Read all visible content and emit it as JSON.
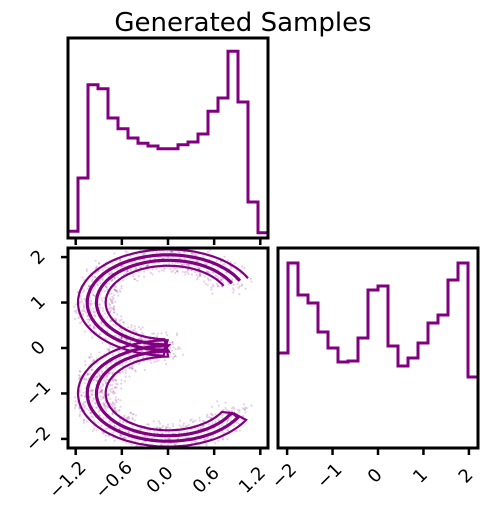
{
  "figure": {
    "title": "Generated Samples",
    "color": "#800080"
  },
  "chart_data": [
    {
      "type": "histogram",
      "panel": "top-left",
      "description_axis": "x",
      "xlim": [
        -1.3,
        1.3
      ],
      "bin_edges": [
        -1.3,
        -1.17,
        -1.04,
        -0.91,
        -0.78,
        -0.65,
        -0.52,
        -0.39,
        -0.26,
        -0.13,
        0.0,
        0.13,
        0.26,
        0.39,
        0.52,
        0.65,
        0.78,
        0.91,
        1.04,
        1.17,
        1.3
      ],
      "counts": [
        5,
        45,
        115,
        112,
        90,
        82,
        75,
        71,
        69,
        67,
        67,
        70,
        72,
        78,
        95,
        105,
        140,
        102,
        27,
        4
      ],
      "ylim": [
        0,
        150
      ],
      "show_y_ticks": false,
      "show_x_ticklabels": false
    },
    {
      "type": "contour+scatter",
      "panel": "bottom-left",
      "shape": "S",
      "xlim": [
        -1.3,
        1.3
      ],
      "ylim": [
        -2.2,
        2.2
      ],
      "x_ticks": [
        -1.2,
        -0.6,
        0.0,
        0.6,
        1.2
      ],
      "x_ticklabels": [
        "−1.2",
        "−0.6",
        "0.0",
        "0.6",
        "1.2"
      ],
      "y_ticks": [
        -2,
        -1,
        0,
        1,
        2
      ],
      "y_ticklabels": [
        "−2",
        "−1",
        "0",
        "1",
        "2"
      ],
      "contour_levels": 4
    },
    {
      "type": "histogram",
      "panel": "bottom-right",
      "description_axis": "y",
      "xlim": [
        -2.2,
        2.2
      ],
      "bin_edges": [
        -2.2,
        -1.98,
        -1.76,
        -1.54,
        -1.32,
        -1.1,
        -0.88,
        -0.66,
        -0.44,
        -0.22,
        0.0,
        0.22,
        0.44,
        0.66,
        0.88,
        1.1,
        1.32,
        1.54,
        1.76,
        1.98,
        2.2
      ],
      "counts": [
        95,
        185,
        153,
        145,
        116,
        100,
        86,
        87,
        110,
        158,
        162,
        102,
        82,
        90,
        105,
        125,
        133,
        168,
        185,
        71
      ],
      "ylim": [
        0,
        200
      ],
      "x_ticks": [
        -2,
        -1,
        0,
        1,
        2
      ],
      "x_ticklabels": [
        "−2",
        "−1",
        "0",
        "1",
        "2"
      ],
      "show_y_ticks": false
    }
  ]
}
